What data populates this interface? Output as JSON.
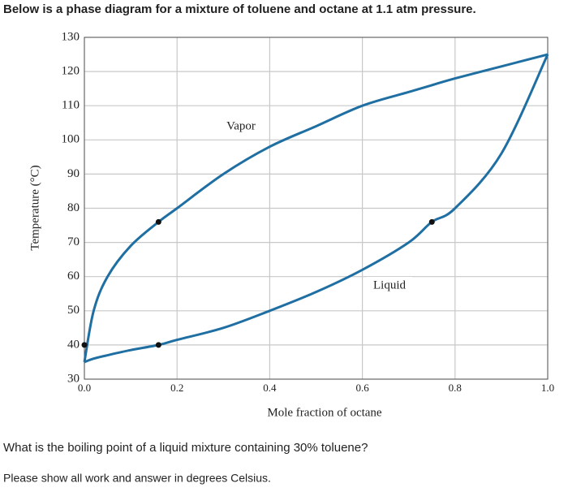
{
  "header": {
    "text": "Below is a phase diagram for a mixture of toluene and octane at 1.1 atm pressure."
  },
  "chart_data": {
    "type": "line",
    "xlabel": "Mole fraction of octane",
    "ylabel": "Temperature (°C)",
    "x": [
      0,
      0.02,
      0.05,
      0.1,
      0.16,
      0.2,
      0.3,
      0.4,
      0.5,
      0.6,
      0.7,
      0.75,
      0.8,
      0.9,
      1.0
    ],
    "series": [
      {
        "name": "Vapor",
        "color": "#1f6fa3",
        "values": [
          35,
          50,
          60,
          69,
          76,
          80,
          90,
          98,
          104,
          110,
          114,
          116,
          118,
          121.5,
          125
        ]
      },
      {
        "name": "Liquid",
        "color": "#1f6fa3",
        "values": [
          35,
          36,
          37,
          38.5,
          40,
          41.5,
          45,
          50,
          55.5,
          62,
          70,
          76,
          80,
          96,
          125
        ]
      }
    ],
    "points": {
      "x": [
        0,
        0.16,
        0.16,
        0.75
      ],
      "y": [
        40,
        76,
        40,
        76
      ],
      "color": "#111"
    },
    "xlim": [
      0,
      1
    ],
    "ylim": [
      30,
      130
    ],
    "xticks": [
      {
        "value": 0,
        "label": "0.0"
      },
      0.2,
      0.4,
      0.6,
      0.8,
      {
        "value": 1,
        "label": "1.0"
      }
    ],
    "yticks": [
      30,
      40,
      50,
      60,
      70,
      80,
      90,
      100,
      110,
      120,
      130
    ],
    "grid": true
  },
  "question": {
    "line1": "What is the boiling point of a liquid mixture containing 30% toluene?",
    "line2": "Please show all work and answer in degrees Celsius."
  }
}
